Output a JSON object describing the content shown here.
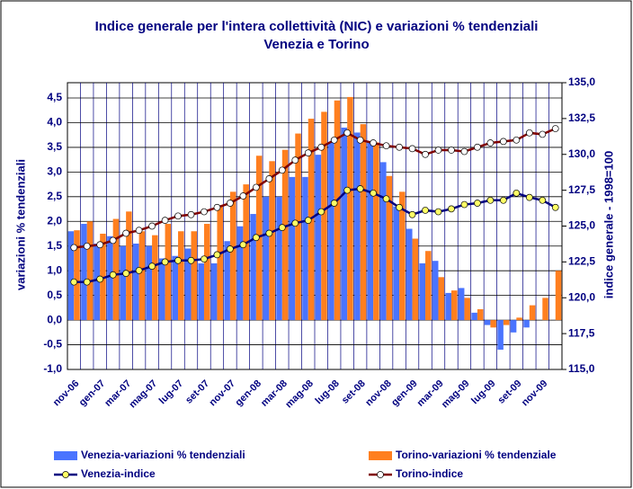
{
  "chart_data": {
    "type": "bar",
    "title": "Indice generale per l'intera collettività (NIC) e variazioni % tendenziali",
    "subtitle": "Venezia e Torino",
    "y_label": "variazioni % tendenziali",
    "y2_label": "indice generale - 1998=100",
    "categories": [
      "nov-06",
      null,
      "gen-07",
      null,
      "mar-07",
      null,
      "mag-07",
      null,
      "lug-07",
      null,
      "set-07",
      null,
      "nov-07",
      null,
      "gen-08",
      null,
      "mar-08",
      null,
      "mag-08",
      null,
      "lug-08",
      null,
      "set-08",
      null,
      "nov-08",
      null,
      "gen-09",
      null,
      "mar-09",
      null,
      "mag-09",
      null,
      "lug-09",
      null,
      "set-09",
      null,
      "nov-09",
      null
    ],
    "ylim": [
      -1,
      4.81
    ],
    "yticks": [
      {
        "value": -1,
        "label": "-1,0"
      },
      {
        "value": -0.5,
        "label": "-0,5"
      },
      {
        "value": 0,
        "label": "0,0"
      },
      {
        "value": 0.5,
        "label": "0,5"
      },
      {
        "value": 1,
        "label": "1,0"
      },
      {
        "value": 1.5,
        "label": "1,5"
      },
      {
        "value": 2,
        "label": "2,0"
      },
      {
        "value": 2.5,
        "label": "2,5"
      },
      {
        "value": 3,
        "label": "3,0"
      },
      {
        "value": 3.5,
        "label": "3,5"
      },
      {
        "value": 4,
        "label": "4,0"
      },
      {
        "value": 4.5,
        "label": "4,5"
      }
    ],
    "y2lim": [
      115,
      135
    ],
    "y2ticks": [
      {
        "value": 115,
        "label": "115,0"
      },
      {
        "value": 117.5,
        "label": "117,5"
      },
      {
        "value": 120,
        "label": "120,0"
      },
      {
        "value": 122.5,
        "label": "122,5"
      },
      {
        "value": 125,
        "label": "125,0"
      },
      {
        "value": 127.5,
        "label": "127,5"
      },
      {
        "value": 130,
        "label": "130,0"
      },
      {
        "value": 132.5,
        "label": "132,5"
      },
      {
        "value": 135,
        "label": "135,0"
      }
    ],
    "grid": true,
    "series": [
      {
        "name": "Venezia-variazioni % tendenziali",
        "type": "bar",
        "color": "#4a74ff",
        "values": [
          1.8,
          1.95,
          1.55,
          1.7,
          1.5,
          1.55,
          1.5,
          1.25,
          1.3,
          1.45,
          1.15,
          1.15,
          1.6,
          1.9,
          2.15,
          2.5,
          2.5,
          2.9,
          2.9,
          3.35,
          3.6,
          3.9,
          3.8,
          3.6,
          3.2,
          2.3,
          1.85,
          1.15,
          1.2,
          0.55,
          0.65,
          0.15,
          -0.1,
          -0.6,
          -0.25,
          -0.15,
          0,
          0
        ]
      },
      {
        "name": "Torino-variazioni % tendenziale",
        "type": "bar",
        "color": "#ff7f1f",
        "values": [
          1.82,
          2.0,
          1.75,
          2.05,
          2.2,
          1.8,
          1.72,
          1.95,
          1.8,
          1.8,
          1.95,
          2.3,
          2.6,
          2.75,
          3.33,
          3.22,
          3.45,
          3.78,
          4.08,
          4.22,
          4.45,
          4.52,
          3.97,
          3.6,
          2.92,
          2.6,
          1.65,
          1.4,
          0.87,
          0.6,
          0.45,
          0.22,
          -0.15,
          -0.1,
          0.05,
          0.3,
          0.45,
          1.0
        ]
      },
      {
        "name": "Venezia-indice",
        "type": "line",
        "axis": "y2",
        "color": "#000080",
        "marker_color": "#ffff66",
        "values": [
          121.1,
          121.1,
          121.3,
          121.6,
          121.7,
          121.9,
          122.2,
          122.5,
          122.6,
          122.6,
          122.7,
          123.0,
          123.4,
          123.7,
          124.2,
          124.5,
          124.9,
          125.2,
          125.4,
          126.0,
          126.6,
          127.5,
          127.6,
          127.3,
          126.9,
          126.3,
          125.8,
          126.1,
          126.0,
          126.2,
          126.5,
          126.6,
          126.8,
          126.8,
          127.3,
          127.0,
          126.8,
          126.3
        ]
      },
      {
        "name": "Torino-indice",
        "type": "line",
        "axis": "y2",
        "color": "#800000",
        "marker_color": "#ffffff",
        "values": [
          123.5,
          123.6,
          123.7,
          124.0,
          124.5,
          124.7,
          125.0,
          125.4,
          125.7,
          125.8,
          126.0,
          126.3,
          126.6,
          127.1,
          127.7,
          128.3,
          128.9,
          129.6,
          130.1,
          130.5,
          131.0,
          131.5,
          131.0,
          130.8,
          130.6,
          130.5,
          130.4,
          130.0,
          130.3,
          130.3,
          130.2,
          130.5,
          130.8,
          130.9,
          131.0,
          131.5,
          131.4,
          131.8
        ]
      }
    ]
  }
}
